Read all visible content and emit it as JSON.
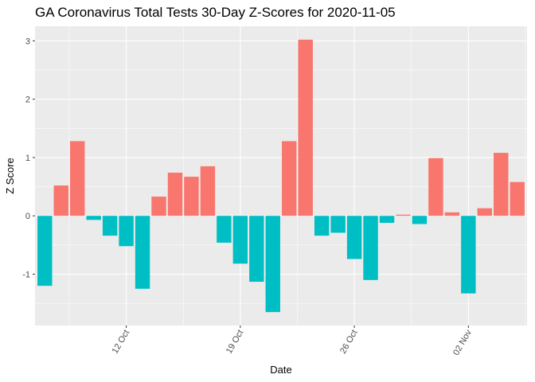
{
  "chart_data": {
    "type": "bar",
    "title": "GA Coronavirus Total Tests 30-Day Z-Scores for 2020-11-05",
    "xlabel": "Date",
    "ylabel": "Z Score",
    "x": [
      "2020-10-07",
      "2020-10-08",
      "2020-10-09",
      "2020-10-10",
      "2020-10-11",
      "2020-10-12",
      "2020-10-13",
      "2020-10-14",
      "2020-10-15",
      "2020-10-16",
      "2020-10-17",
      "2020-10-18",
      "2020-10-19",
      "2020-10-20",
      "2020-10-21",
      "2020-10-22",
      "2020-10-23",
      "2020-10-24",
      "2020-10-25",
      "2020-10-26",
      "2020-10-27",
      "2020-10-28",
      "2020-10-29",
      "2020-10-30",
      "2020-10-31",
      "2020-11-01",
      "2020-11-02",
      "2020-11-03",
      "2020-11-04",
      "2020-11-05"
    ],
    "values": [
      -1.2,
      0.52,
      1.28,
      -0.07,
      -0.34,
      -0.52,
      -1.25,
      0.33,
      0.74,
      0.67,
      0.85,
      -0.46,
      -0.82,
      -1.13,
      -1.65,
      1.28,
      3.02,
      -0.34,
      -0.29,
      -0.74,
      -1.1,
      -0.12,
      0.02,
      -0.14,
      0.99,
      0.06,
      -1.33,
      0.13,
      1.08,
      0.58
    ],
    "x_ticks": [
      "12 Oct",
      "19 Oct",
      "26 Oct",
      "02 Nov"
    ],
    "y_ticks": [
      -1,
      0,
      1,
      2,
      3
    ],
    "ylim": [
      -1.88,
      3.25
    ],
    "colors": {
      "positive": "#F8766D",
      "negative": "#00BFC4",
      "panel": "#EBEBEB",
      "grid": "#FFFFFF"
    },
    "grid": true
  }
}
